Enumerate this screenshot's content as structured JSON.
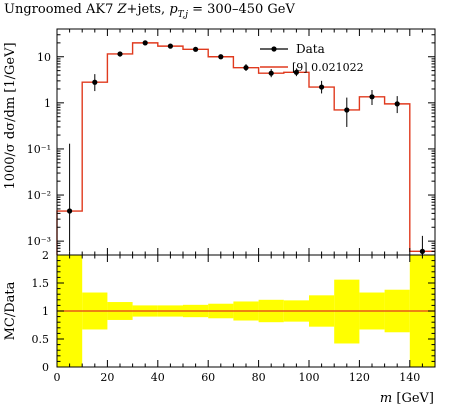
{
  "title": {
    "prefix": "Ungroomed AK7 ",
    "z": "Z",
    "mid": "+jets, ",
    "pt": "p",
    "pt_sub": "T,j",
    "range": " = 300–450 GeV"
  },
  "chart_data": [
    {
      "type": "line",
      "name": "main",
      "ylabel": "1000/σ dσ/dm [1/GeV]",
      "yscale": "log",
      "ylim": [
        0.0005,
        40
      ],
      "y_ticks": [
        {
          "v": 10,
          "label": "10"
        },
        {
          "v": 1,
          "label": "1"
        },
        {
          "v": 0.1,
          "label": "10⁻¹"
        },
        {
          "v": 0.01,
          "label": "10⁻²"
        },
        {
          "v": 0.001,
          "label": "10⁻³"
        }
      ],
      "xlim": [
        0,
        150
      ],
      "legend": {
        "position": "top-right",
        "data_label": "Data",
        "mc_label": "[9] 0.021022"
      },
      "data_points": [
        {
          "x": 5,
          "y": 0.0045,
          "ylo": 0.0006,
          "yhi": 0.13
        },
        {
          "x": 15,
          "y": 2.8,
          "ylo": 1.8,
          "yhi": 4.2
        },
        {
          "x": 25,
          "y": 11.5,
          "ylo": 10.0,
          "yhi": 13.0
        },
        {
          "x": 35,
          "y": 20,
          "ylo": 18.5,
          "yhi": 21.5
        },
        {
          "x": 45,
          "y": 17,
          "ylo": 15.5,
          "yhi": 18.5
        },
        {
          "x": 55,
          "y": 14.5,
          "ylo": 13.2,
          "yhi": 15.8
        },
        {
          "x": 65,
          "y": 10,
          "ylo": 8.9,
          "yhi": 11.2
        },
        {
          "x": 75,
          "y": 5.8,
          "ylo": 4.9,
          "yhi": 6.9
        },
        {
          "x": 85,
          "y": 4.4,
          "ylo": 3.6,
          "yhi": 5.4
        },
        {
          "x": 95,
          "y": 4.6,
          "ylo": 3.8,
          "yhi": 5.6
        },
        {
          "x": 105,
          "y": 2.2,
          "ylo": 1.6,
          "yhi": 3.0
        },
        {
          "x": 115,
          "y": 0.7,
          "ylo": 0.3,
          "yhi": 1.3
        },
        {
          "x": 125,
          "y": 1.35,
          "ylo": 0.9,
          "yhi": 1.9
        },
        {
          "x": 135,
          "y": 0.95,
          "ylo": 0.6,
          "yhi": 1.4
        },
        {
          "x": 145,
          "y": 0.0006,
          "ylo": 0.0001,
          "yhi": 0.0013
        }
      ],
      "mc_bins": [
        {
          "x0": 0,
          "x1": 10,
          "y": 0.0045
        },
        {
          "x0": 10,
          "x1": 20,
          "y": 2.8
        },
        {
          "x0": 20,
          "x1": 30,
          "y": 11.5
        },
        {
          "x0": 30,
          "x1": 40,
          "y": 20
        },
        {
          "x0": 40,
          "x1": 50,
          "y": 17
        },
        {
          "x0": 50,
          "x1": 60,
          "y": 14.5
        },
        {
          "x0": 60,
          "x1": 70,
          "y": 10
        },
        {
          "x0": 70,
          "x1": 80,
          "y": 5.8
        },
        {
          "x0": 80,
          "x1": 90,
          "y": 4.4
        },
        {
          "x0": 90,
          "x1": 100,
          "y": 4.6
        },
        {
          "x0": 100,
          "x1": 110,
          "y": 2.2
        },
        {
          "x0": 110,
          "x1": 120,
          "y": 0.7
        },
        {
          "x0": 120,
          "x1": 130,
          "y": 1.35
        },
        {
          "x0": 130,
          "x1": 140,
          "y": 0.95
        },
        {
          "x0": 140,
          "x1": 150,
          "y": 0.0006
        }
      ]
    },
    {
      "type": "area",
      "name": "ratio",
      "ylabel": "MC/Data",
      "xlabel": "m [GeV]",
      "ylim": [
        0,
        2
      ],
      "xlim": [
        0,
        150
      ],
      "y_ticks": [
        "0",
        "0.5",
        "1",
        "1.5",
        "2"
      ],
      "x_ticks": [
        "0",
        "20",
        "40",
        "60",
        "80",
        "100",
        "120",
        "140"
      ],
      "x_tick_values": [
        0,
        20,
        40,
        60,
        80,
        100,
        120,
        140
      ],
      "reference_line": 1.0,
      "uncertainty_band": [
        {
          "x0": 0,
          "x1": 10,
          "lo": 0,
          "hi": 2
        },
        {
          "x0": 10,
          "x1": 20,
          "lo": 0.67,
          "hi": 1.33
        },
        {
          "x0": 20,
          "x1": 30,
          "lo": 0.84,
          "hi": 1.16
        },
        {
          "x0": 30,
          "x1": 40,
          "lo": 0.9,
          "hi": 1.1
        },
        {
          "x0": 40,
          "x1": 50,
          "lo": 0.9,
          "hi": 1.1
        },
        {
          "x0": 50,
          "x1": 60,
          "lo": 0.89,
          "hi": 1.11
        },
        {
          "x0": 60,
          "x1": 70,
          "lo": 0.87,
          "hi": 1.13
        },
        {
          "x0": 70,
          "x1": 80,
          "lo": 0.83,
          "hi": 1.17
        },
        {
          "x0": 80,
          "x1": 90,
          "lo": 0.8,
          "hi": 1.2
        },
        {
          "x0": 90,
          "x1": 100,
          "lo": 0.81,
          "hi": 1.19
        },
        {
          "x0": 100,
          "x1": 110,
          "lo": 0.72,
          "hi": 1.28
        },
        {
          "x0": 110,
          "x1": 120,
          "lo": 0.42,
          "hi": 1.56
        },
        {
          "x0": 120,
          "x1": 130,
          "lo": 0.67,
          "hi": 1.33
        },
        {
          "x0": 130,
          "x1": 140,
          "lo": 0.62,
          "hi": 1.38
        },
        {
          "x0": 140,
          "x1": 150,
          "lo": 0,
          "hi": 2
        }
      ]
    }
  ],
  "colors": {
    "mc": "#e03a1e",
    "band": "#ffff00",
    "data": "#000000",
    "ratio_line": "#e03a1e"
  }
}
